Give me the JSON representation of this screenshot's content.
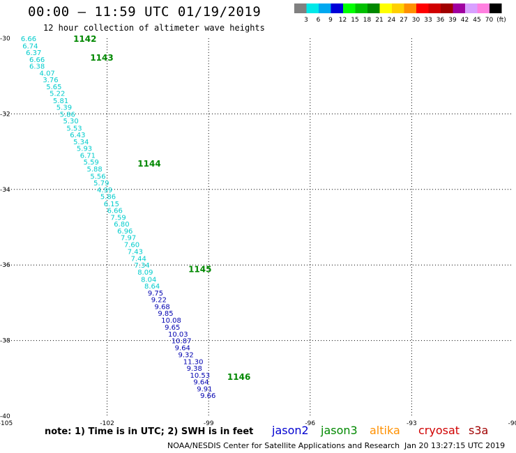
{
  "title": "00:00 — 11:59 UTC 01/19/2019",
  "subtitle": "12 hour collection of altimeter wave heights",
  "color_scale": {
    "colors": [
      "#808080",
      "#00e8e8",
      "#00a8f0",
      "#0000d8",
      "#00ff00",
      "#00c000",
      "#008800",
      "#ffff00",
      "#ffd000",
      "#ff9000",
      "#ff0000",
      "#d00000",
      "#a00000",
      "#a000a0",
      "#d8a0ff",
      "#ff80e0",
      "#000000"
    ],
    "labels": [
      "3",
      "6",
      "9",
      "12",
      "15",
      "18",
      "21",
      "24",
      "27",
      "30",
      "33",
      "36",
      "39",
      "42",
      "45",
      "70",
      "(ft)"
    ]
  },
  "note": "note: 1) Time is in UTC; 2) SWH is in feet",
  "satellites": [
    {
      "name": "jason2",
      "color": "#0000d0"
    },
    {
      "name": "jason3",
      "color": "#008800"
    },
    {
      "name": "altika",
      "color": "#ff9000"
    },
    {
      "name": "cryosat",
      "color": "#d00000"
    },
    {
      "name": "s3a",
      "color": "#a00000"
    }
  ],
  "credit": "NOAA/NESDIS Center for Satellite Applications and Research",
  "timestamp": "Jan 20 13:27:15 UTC 2019",
  "chart_data": {
    "type": "scatter",
    "title": "00:00 — 11:59 UTC 01/19/2019",
    "subtitle": "12 hour collection of altimeter wave heights",
    "xlim": [
      -105,
      -90
    ],
    "ylim": [
      -40,
      -30
    ],
    "x_ticks": [
      -105,
      -102,
      -99,
      -96,
      -93,
      -90
    ],
    "y_ticks": [
      -30,
      -32,
      -34,
      -36,
      -38,
      -40
    ],
    "grid": true,
    "time_labels": [
      {
        "text": "1142",
        "x": -103.0,
        "y": -30.0
      },
      {
        "text": "1143",
        "x": -102.5,
        "y": -30.5
      },
      {
        "text": "1144",
        "x": -101.1,
        "y": -33.3
      },
      {
        "text": "1145",
        "x": -99.6,
        "y": -36.1
      },
      {
        "text": "1146",
        "x": -98.45,
        "y": -38.95
      }
    ],
    "series": [
      {
        "satellite": "jason3",
        "color": "#00cccc",
        "points": [
          {
            "x": -104.55,
            "y": -30.0,
            "v": "6.66"
          },
          {
            "x": -104.5,
            "y": -30.19,
            "v": "6.74"
          },
          {
            "x": -104.4,
            "y": -30.37,
            "v": "6.37"
          },
          {
            "x": -104.3,
            "y": -30.55,
            "v": "6.66"
          },
          {
            "x": -104.3,
            "y": -30.73,
            "v": "6.38"
          },
          {
            "x": -104.0,
            "y": -30.91,
            "v": "4.07"
          },
          {
            "x": -103.9,
            "y": -31.09,
            "v": "3.76"
          },
          {
            "x": -103.8,
            "y": -31.27,
            "v": "5.65"
          },
          {
            "x": -103.7,
            "y": -31.45,
            "v": "5.22"
          },
          {
            "x": -103.6,
            "y": -31.64,
            "v": "5.81"
          },
          {
            "x": -103.5,
            "y": -31.82,
            "v": "5.39"
          },
          {
            "x": -103.4,
            "y": -32.0,
            "v": "5.86"
          },
          {
            "x": -103.3,
            "y": -32.18,
            "v": "5.30"
          },
          {
            "x": -103.2,
            "y": -32.37,
            "v": "5.53"
          },
          {
            "x": -103.1,
            "y": -32.55,
            "v": "6.43"
          },
          {
            "x": -103.0,
            "y": -32.73,
            "v": "5.34"
          },
          {
            "x": -102.9,
            "y": -32.91,
            "v": "5.93"
          },
          {
            "x": -102.8,
            "y": -33.09,
            "v": "6.71"
          },
          {
            "x": -102.7,
            "y": -33.27,
            "v": "5.59"
          },
          {
            "x": -102.6,
            "y": -33.45,
            "v": "5.88"
          },
          {
            "x": -102.5,
            "y": -33.64,
            "v": "5.56"
          },
          {
            "x": -102.4,
            "y": -33.82,
            "v": "5.79"
          },
          {
            "x": -102.3,
            "y": -34.0,
            "v": "4.99"
          },
          {
            "x": -102.2,
            "y": -34.18,
            "v": "5.86"
          },
          {
            "x": -102.1,
            "y": -34.37,
            "v": "6.15"
          },
          {
            "x": -102.0,
            "y": -34.55,
            "v": "6.66"
          },
          {
            "x": -101.9,
            "y": -34.73,
            "v": "7.59"
          },
          {
            "x": -101.8,
            "y": -34.91,
            "v": "6.80"
          },
          {
            "x": -101.7,
            "y": -35.09,
            "v": "6.96"
          },
          {
            "x": -101.6,
            "y": -35.27,
            "v": "7.97"
          },
          {
            "x": -101.5,
            "y": -35.45,
            "v": "7.60"
          },
          {
            "x": -101.4,
            "y": -35.64,
            "v": "7.43"
          },
          {
            "x": -101.3,
            "y": -35.82,
            "v": "7.44"
          },
          {
            "x": -101.2,
            "y": -36.0,
            "v": "7.34"
          },
          {
            "x": -101.1,
            "y": -36.18,
            "v": "8.09"
          },
          {
            "x": -101.0,
            "y": -36.37,
            "v": "8.04"
          },
          {
            "x": -100.9,
            "y": -36.55,
            "v": "8.64"
          }
        ]
      },
      {
        "satellite": "jason3",
        "color": "#0000b0",
        "points": [
          {
            "x": -100.8,
            "y": -36.73,
            "v": "9.75"
          },
          {
            "x": -100.7,
            "y": -36.91,
            "v": "9.22"
          },
          {
            "x": -100.6,
            "y": -37.09,
            "v": "9.68"
          },
          {
            "x": -100.5,
            "y": -37.27,
            "v": "9.85"
          },
          {
            "x": -100.4,
            "y": -37.45,
            "v": "10.08"
          },
          {
            "x": -100.3,
            "y": -37.64,
            "v": "9.65"
          },
          {
            "x": -100.2,
            "y": -37.82,
            "v": "10.03"
          },
          {
            "x": -100.1,
            "y": -38.0,
            "v": "10.87"
          },
          {
            "x": -100.0,
            "y": -38.18,
            "v": "9.64"
          },
          {
            "x": -99.9,
            "y": -38.37,
            "v": "9.32"
          },
          {
            "x": -99.75,
            "y": -38.55,
            "v": "11.30"
          },
          {
            "x": -99.65,
            "y": -38.73,
            "v": "9.38"
          },
          {
            "x": -99.55,
            "y": -38.91,
            "v": "10.53"
          },
          {
            "x": -99.45,
            "y": -39.09,
            "v": "9.64"
          },
          {
            "x": -99.35,
            "y": -39.27,
            "v": "9.91"
          },
          {
            "x": -99.25,
            "y": -39.45,
            "v": "9.66"
          }
        ]
      }
    ]
  }
}
